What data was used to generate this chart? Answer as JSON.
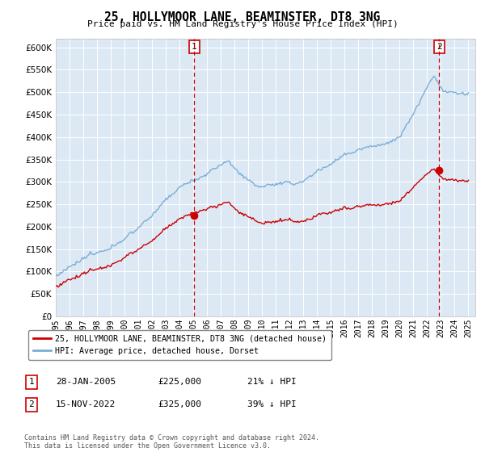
{
  "title": "25, HOLLYMOOR LANE, BEAMINSTER, DT8 3NG",
  "subtitle": "Price paid vs. HM Land Registry's House Price Index (HPI)",
  "ylim": [
    0,
    620000
  ],
  "yticks": [
    0,
    50000,
    100000,
    150000,
    200000,
    250000,
    300000,
    350000,
    400000,
    450000,
    500000,
    550000,
    600000
  ],
  "legend_label_red": "25, HOLLYMOOR LANE, BEAMINSTER, DT8 3NG (detached house)",
  "legend_label_blue": "HPI: Average price, detached house, Dorset",
  "annotation1_label": "1",
  "annotation1_date": "28-JAN-2005",
  "annotation1_price": "£225,000",
  "annotation1_hpi": "21% ↓ HPI",
  "annotation2_label": "2",
  "annotation2_date": "15-NOV-2022",
  "annotation2_price": "£325,000",
  "annotation2_hpi": "39% ↓ HPI",
  "footer": "Contains HM Land Registry data © Crown copyright and database right 2024.\nThis data is licensed under the Open Government Licence v3.0.",
  "bg_color": "#dce9f5",
  "red_color": "#cc0000",
  "blue_color": "#7aaed6",
  "marker1_x": 2005.07,
  "marker1_y": 225000,
  "marker2_x": 2022.88,
  "marker2_y": 325000,
  "vline1_x": 2005.07,
  "vline2_x": 2022.88,
  "xmin": 1995,
  "xmax": 2025.5,
  "xtick_years": [
    1995,
    1996,
    1997,
    1998,
    1999,
    2000,
    2001,
    2002,
    2003,
    2004,
    2005,
    2006,
    2007,
    2008,
    2009,
    2010,
    2011,
    2012,
    2013,
    2014,
    2015,
    2016,
    2017,
    2018,
    2019,
    2020,
    2021,
    2022,
    2023,
    2024,
    2025
  ]
}
